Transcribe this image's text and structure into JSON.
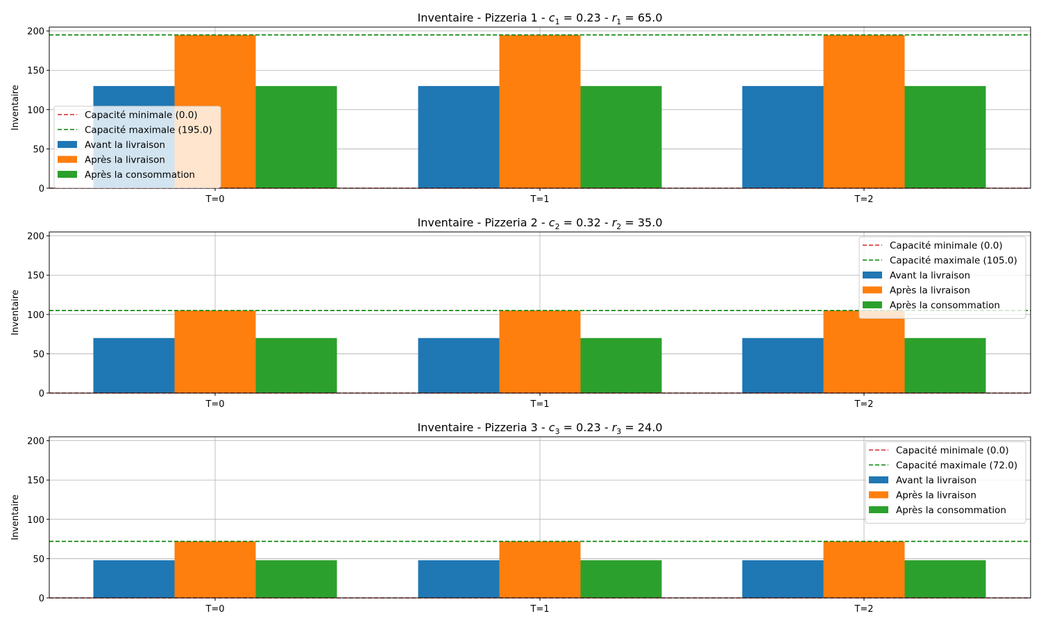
{
  "chart_data": [
    {
      "type": "bar",
      "title_parts": {
        "prefix": "Inventaire - Pizzeria 1 - ",
        "c_sym": "c",
        "sub": "1",
        "c_val": " = 0.23",
        "sep": " - ",
        "r_sym": "r",
        "r_val": " = 65.0"
      },
      "ylabel": "Inventaire",
      "categories": [
        "T=0",
        "T=1",
        "T=2"
      ],
      "ylim": [
        0,
        205
      ],
      "yticks": [
        "0",
        "50",
        "100",
        "150",
        "200"
      ],
      "grid": true,
      "legend_position": "center-left",
      "series": [
        {
          "name": "Avant la livraison",
          "values": [
            130,
            130,
            130
          ],
          "color": "#1f77b4"
        },
        {
          "name": "Après la livraison",
          "values": [
            195,
            195,
            195
          ],
          "color": "#ff7f0e"
        },
        {
          "name": "Après la consommation",
          "values": [
            130,
            130,
            130
          ],
          "color": "#2ca02c"
        }
      ],
      "hlines": [
        {
          "name": "Capacité minimale (0.0)",
          "value": 0,
          "color": "#d62728"
        },
        {
          "name": "Capacité maximale (195.0)",
          "value": 195,
          "color": "#008000"
        }
      ]
    },
    {
      "type": "bar",
      "title_parts": {
        "prefix": "Inventaire - Pizzeria 2 - ",
        "c_sym": "c",
        "sub": "2",
        "c_val": " = 0.32",
        "sep": " - ",
        "r_sym": "r",
        "r_val": " = 35.0"
      },
      "ylabel": "Inventaire",
      "categories": [
        "T=0",
        "T=1",
        "T=2"
      ],
      "ylim": [
        0,
        205
      ],
      "yticks": [
        "0",
        "50",
        "100",
        "150",
        "200"
      ],
      "grid": true,
      "legend_position": "upper-right",
      "series": [
        {
          "name": "Avant la livraison",
          "values": [
            70,
            70,
            70
          ],
          "color": "#1f77b4"
        },
        {
          "name": "Après la livraison",
          "values": [
            105,
            105,
            105
          ],
          "color": "#ff7f0e"
        },
        {
          "name": "Après la consommation",
          "values": [
            70,
            70,
            70
          ],
          "color": "#2ca02c"
        }
      ],
      "hlines": [
        {
          "name": "Capacité minimale (0.0)",
          "value": 0,
          "color": "#d62728"
        },
        {
          "name": "Capacité maximale (105.0)",
          "value": 105,
          "color": "#008000"
        }
      ]
    },
    {
      "type": "bar",
      "title_parts": {
        "prefix": "Inventaire - Pizzeria 3 - ",
        "c_sym": "c",
        "sub": "3",
        "c_val": " = 0.23",
        "sep": " - ",
        "r_sym": "r",
        "r_val": " = 24.0"
      },
      "ylabel": "Inventaire",
      "categories": [
        "T=0",
        "T=1",
        "T=2"
      ],
      "ylim": [
        0,
        205
      ],
      "yticks": [
        "0",
        "50",
        "100",
        "150",
        "200"
      ],
      "grid": true,
      "legend_position": "upper-right",
      "series": [
        {
          "name": "Avant la livraison",
          "values": [
            48,
            48,
            48
          ],
          "color": "#1f77b4"
        },
        {
          "name": "Après la livraison",
          "values": [
            72,
            72,
            72
          ],
          "color": "#ff7f0e"
        },
        {
          "name": "Après la consommation",
          "values": [
            48,
            48,
            48
          ],
          "color": "#2ca02c"
        }
      ],
      "hlines": [
        {
          "name": "Capacité minimale (0.0)",
          "value": 0,
          "color": "#d62728"
        },
        {
          "name": "Capacité maximale (72.0)",
          "value": 72,
          "color": "#008000"
        }
      ]
    }
  ]
}
